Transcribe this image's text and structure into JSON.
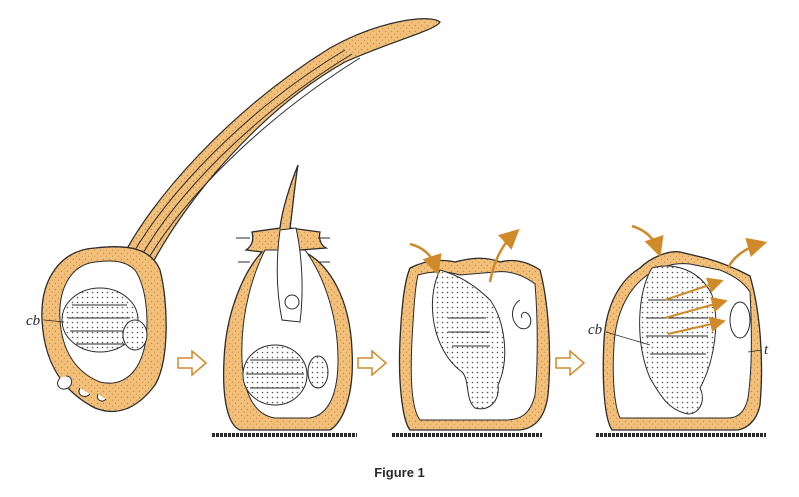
{
  "labels": {
    "cb_left": "cb",
    "cb_right": "cb",
    "t": "t"
  },
  "caption": "Figure 1",
  "colors": {
    "tunic": "#f2c07a",
    "stipple": "#c98a3a",
    "outline": "#2b2b2b",
    "arrow": "#d08a2a",
    "ground": "#2b2b2b"
  }
}
